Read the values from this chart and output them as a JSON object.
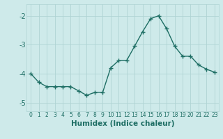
{
  "x": [
    0,
    1,
    2,
    3,
    4,
    5,
    6,
    7,
    8,
    9,
    10,
    11,
    12,
    13,
    14,
    15,
    16,
    17,
    18,
    19,
    20,
    21,
    22,
    23
  ],
  "y": [
    -4.0,
    -4.3,
    -4.45,
    -4.45,
    -4.45,
    -4.45,
    -4.6,
    -4.75,
    -4.65,
    -4.65,
    -3.8,
    -3.55,
    -3.55,
    -3.05,
    -2.55,
    -2.1,
    -2.0,
    -2.45,
    -3.05,
    -3.4,
    -3.4,
    -3.7,
    -3.85,
    -3.95
  ],
  "xlabel": "Humidex (Indice chaleur)",
  "xlim_min": -0.5,
  "xlim_max": 23.5,
  "ylim_min": -5.3,
  "ylim_max": -1.6,
  "yticks": [
    -5,
    -4,
    -3,
    -2
  ],
  "xticks": [
    0,
    1,
    2,
    3,
    4,
    5,
    6,
    7,
    8,
    9,
    10,
    11,
    12,
    13,
    14,
    15,
    16,
    17,
    18,
    19,
    20,
    21,
    22,
    23
  ],
  "line_color": "#1e6e64",
  "marker": "+",
  "background_color": "#ceeaea",
  "grid_color": "#afd4d4",
  "axis_bg": "#ceeaea",
  "tick_color": "#1e6e64",
  "xlabel_fontsize": 7.5,
  "tick_fontsize": 7,
  "linewidth": 1.0,
  "markersize": 4,
  "markeredgewidth": 1.0
}
